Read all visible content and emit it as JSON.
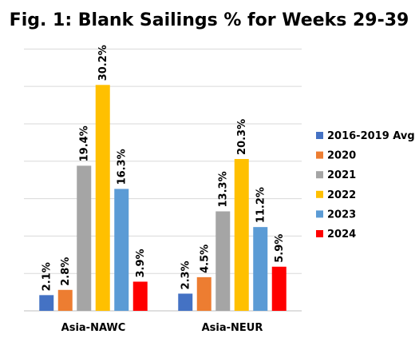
{
  "chart_data": {
    "type": "bar",
    "title": "Fig. 1: Blank Sailings % for Weeks 29-39",
    "xlabel": "",
    "ylabel": "",
    "categories": [
      "Asia-NAWC",
      "Asia-NEUR"
    ],
    "ylim": [
      0,
      0.36
    ],
    "grid": true,
    "legend_position": "right",
    "series": [
      {
        "name": "2016-2019 Avg",
        "color": "#4472C4",
        "values": [
          0.021,
          0.023
        ],
        "labels": [
          "2.1%",
          "2.3%"
        ]
      },
      {
        "name": "2020",
        "color": "#ED7D31",
        "values": [
          0.028,
          0.045
        ],
        "labels": [
          "2.8%",
          "4.5%"
        ]
      },
      {
        "name": "2021",
        "color": "#A5A5A5",
        "values": [
          0.194,
          0.133
        ],
        "labels": [
          "19.4%",
          "13.3%"
        ]
      },
      {
        "name": "2022",
        "color": "#FFC000",
        "values": [
          0.302,
          0.203
        ],
        "labels": [
          "30.2%",
          "20.3%"
        ]
      },
      {
        "name": "2023",
        "color": "#5B9BD5",
        "values": [
          0.163,
          0.112
        ],
        "labels": [
          "16.3%",
          "11.2%"
        ]
      },
      {
        "name": "2024",
        "color": "#FF0000",
        "values": [
          0.039,
          0.059
        ],
        "labels": [
          "3.9%",
          "5.9%"
        ]
      }
    ]
  }
}
